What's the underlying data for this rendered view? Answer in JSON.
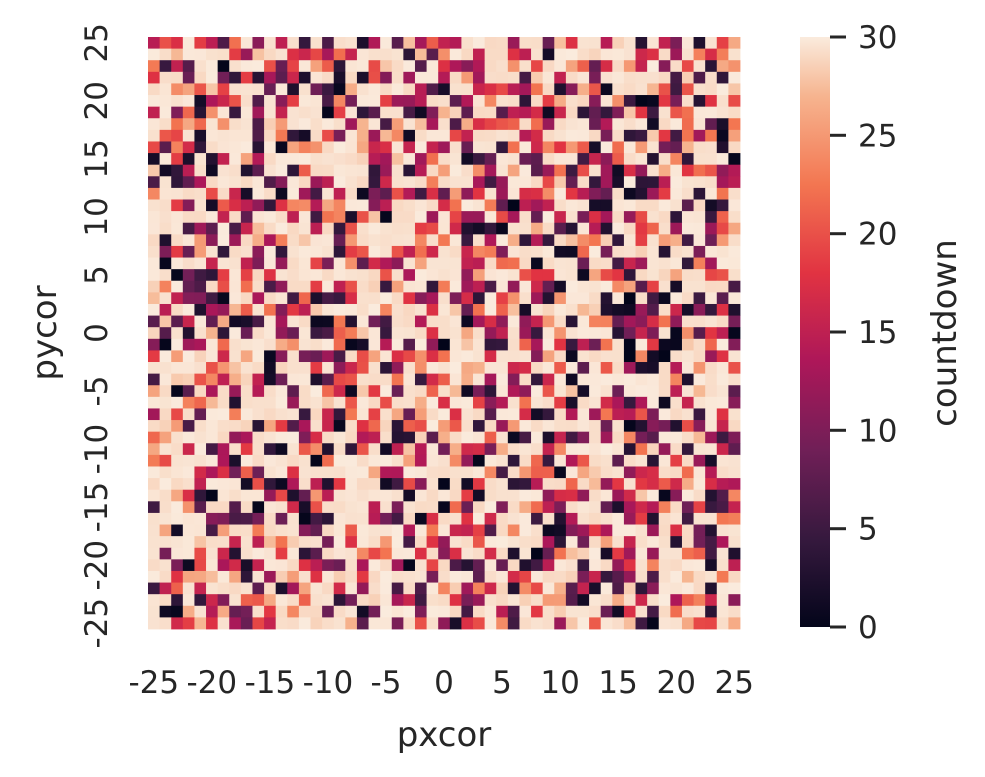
{
  "chart_data": {
    "type": "heatmap",
    "xlabel": "pxcor",
    "ylabel": "pycor",
    "colorbar_label": "countdown",
    "x_range": [
      -25,
      25
    ],
    "y_range": [
      -25,
      25
    ],
    "x_ticks": [
      "-25",
      "-20",
      "-15",
      "-10",
      "-5",
      "0",
      "5",
      "10",
      "15",
      "20",
      "25"
    ],
    "y_ticks": [
      "25",
      "20",
      "15",
      "10",
      "5",
      "0",
      "-5",
      "-10",
      "-15",
      "-20",
      "-25"
    ],
    "colorbar_ticks": [
      "30",
      "25",
      "20",
      "15",
      "10",
      "5",
      "0"
    ],
    "color_range": [
      0,
      30
    ],
    "colormap": "rocket",
    "grid": 51,
    "generation": "seeded pseudo-random field; most cells near 30, scattered low values"
  }
}
